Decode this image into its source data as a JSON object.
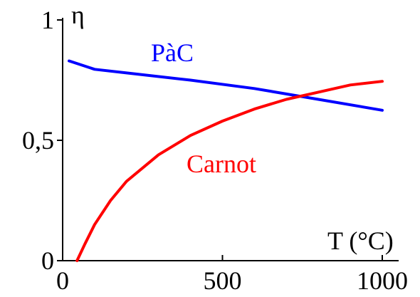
{
  "chart_data": {
    "type": "line",
    "xlabel": "T (°C)",
    "ylabel": "η",
    "xlim": [
      0,
      1000
    ],
    "ylim": [
      0,
      1
    ],
    "x_ticks": [
      {
        "value": 0,
        "label": "0"
      },
      {
        "value": 500,
        "label": "500"
      },
      {
        "value": 1000,
        "label": "1000"
      }
    ],
    "y_ticks": [
      {
        "value": 0,
        "label": "0"
      },
      {
        "value": 0.5,
        "label": "0,5"
      },
      {
        "value": 1,
        "label": "1"
      }
    ],
    "grid": false,
    "legend": "inline labels",
    "series": [
      {
        "name": "PàC",
        "color": "#0000ff",
        "x": [
          20,
          100,
          200,
          400,
          600,
          800,
          1000
        ],
        "y": [
          0.83,
          0.795,
          0.78,
          0.75,
          0.715,
          0.67,
          0.625
        ]
      },
      {
        "name": "Carnot",
        "color": "#ff0000",
        "x": [
          45,
          70,
          100,
          150,
          200,
          300,
          400,
          500,
          600,
          700,
          800,
          900,
          1000
        ],
        "y": [
          0.0,
          0.07,
          0.15,
          0.25,
          0.33,
          0.44,
          0.52,
          0.58,
          0.63,
          0.67,
          0.7,
          0.73,
          0.745
        ]
      }
    ]
  }
}
